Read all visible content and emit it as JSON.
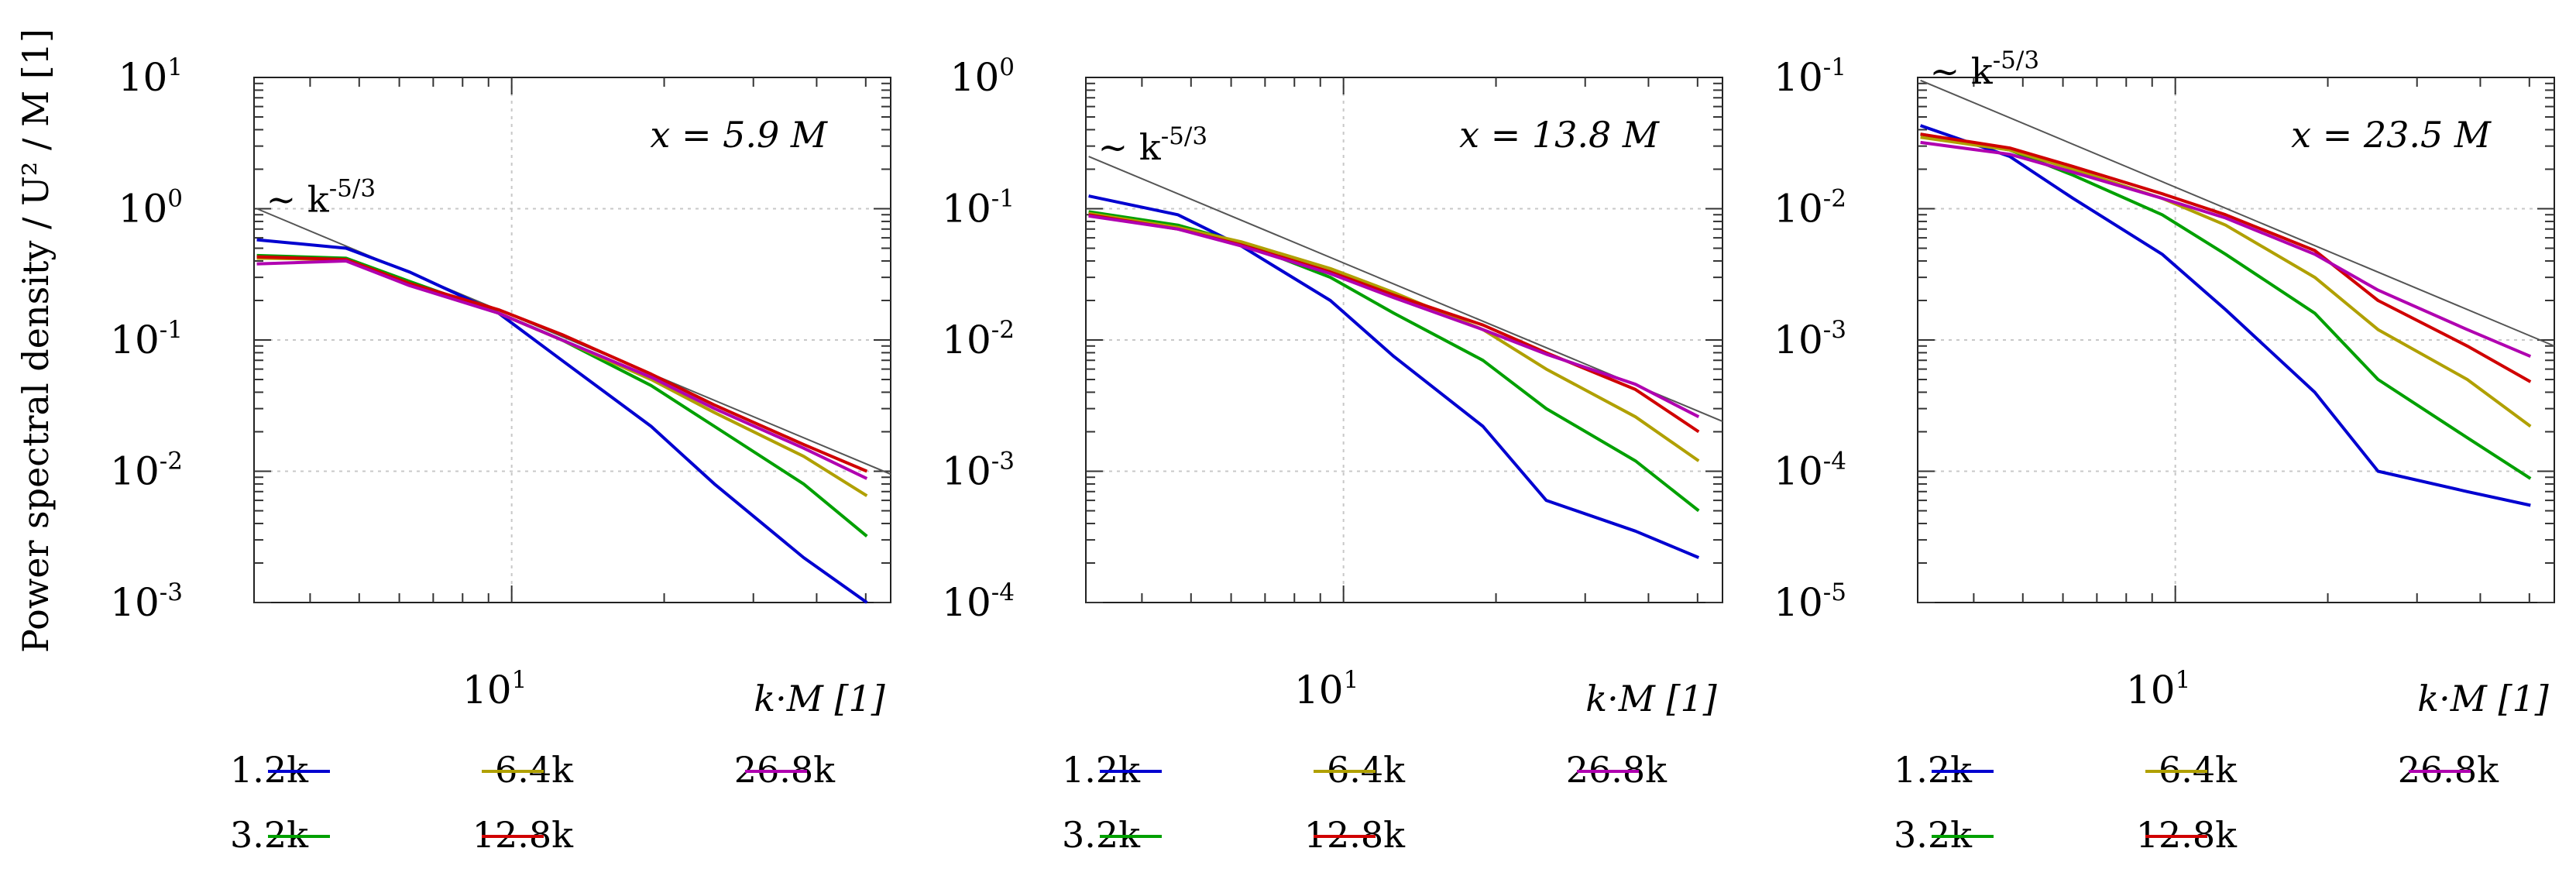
{
  "figure": {
    "ylabel": "Power spectral density / U² / M [1]",
    "xlabel": "k·M [1]"
  },
  "legend_labels": [
    "1.2k",
    "3.2k",
    "6.4k",
    "12.8k",
    "26.8k"
  ],
  "series_colors": {
    "1.2k": "#0000d0",
    "3.2k": "#00a000",
    "6.4k": "#b0a000",
    "12.8k": "#d00000",
    "26.8k": "#b000b0"
  },
  "reference_line_color": "#555555",
  "chart_data": [
    {
      "type": "line",
      "title": "x = 5.9 M",
      "annotation": "~ k^-5/3",
      "xscale": "log",
      "yscale": "log",
      "xlim": [
        3.1,
        56
      ],
      "ylim": [
        0.001,
        10
      ],
      "x_ticklabels": [
        "10^1"
      ],
      "y_ticklabels": [
        "10^-3",
        "10^-2",
        "10^-1",
        "10^0",
        "10^1"
      ],
      "x": [
        3.14,
        4.71,
        6.28,
        9.42,
        12.57,
        18.85,
        25.13,
        37.7,
        50.27
      ],
      "series": [
        {
          "name": "1.2k",
          "values": [
            0.58,
            0.5,
            0.33,
            0.16,
            0.07,
            0.022,
            0.008,
            0.0022,
            0.001
          ]
        },
        {
          "name": "3.2k",
          "values": [
            0.44,
            0.42,
            0.28,
            0.16,
            0.1,
            0.045,
            0.022,
            0.008,
            0.0032
          ]
        },
        {
          "name": "6.4k",
          "values": [
            0.42,
            0.41,
            0.27,
            0.16,
            0.1,
            0.05,
            0.028,
            0.013,
            0.0065
          ]
        },
        {
          "name": "12.8k",
          "values": [
            0.43,
            0.41,
            0.27,
            0.17,
            0.11,
            0.055,
            0.032,
            0.016,
            0.01
          ]
        },
        {
          "name": "26.8k",
          "values": [
            0.38,
            0.4,
            0.26,
            0.16,
            0.1,
            0.052,
            0.03,
            0.015,
            0.0088
          ]
        }
      ],
      "reference_line": {
        "x": [
          3.14,
          56
        ],
        "y": [
          1.0,
          0.0095
        ]
      }
    },
    {
      "type": "line",
      "title": "x = 13.8 M",
      "annotation": "~ k^-5/3",
      "xscale": "log",
      "yscale": "log",
      "xlim": [
        3.1,
        56
      ],
      "ylim": [
        0.0001,
        1
      ],
      "x_ticklabels": [
        "10^1"
      ],
      "y_ticklabels": [
        "10^-4",
        "10^-3",
        "10^-2",
        "10^-1",
        "10^0"
      ],
      "x": [
        3.14,
        4.71,
        6.28,
        9.42,
        12.57,
        18.85,
        25.13,
        37.7,
        50.27
      ],
      "series": [
        {
          "name": "1.2k",
          "values": [
            0.125,
            0.09,
            0.052,
            0.02,
            0.0075,
            0.0022,
            0.0006,
            0.00035,
            0.00022
          ]
        },
        {
          "name": "3.2k",
          "values": [
            0.095,
            0.075,
            0.055,
            0.03,
            0.016,
            0.007,
            0.003,
            0.0012,
            0.0005
          ]
        },
        {
          "name": "6.4k",
          "values": [
            0.092,
            0.072,
            0.056,
            0.035,
            0.023,
            0.012,
            0.006,
            0.0026,
            0.0012
          ]
        },
        {
          "name": "12.8k",
          "values": [
            0.09,
            0.07,
            0.053,
            0.033,
            0.022,
            0.013,
            0.008,
            0.0042,
            0.002
          ]
        },
        {
          "name": "26.8k",
          "values": [
            0.088,
            0.07,
            0.052,
            0.032,
            0.021,
            0.012,
            0.0078,
            0.0046,
            0.0026
          ]
        }
      ],
      "reference_line": {
        "x": [
          3.14,
          56
        ],
        "y": [
          0.25,
          0.0024
        ]
      }
    },
    {
      "type": "line",
      "title": "x = 23.5 M",
      "annotation": "~ k^-5/3",
      "xscale": "log",
      "yscale": "log",
      "xlim": [
        3.1,
        56
      ],
      "ylim": [
        1e-05,
        0.1
      ],
      "x_ticklabels": [
        "10^1"
      ],
      "y_ticklabels": [
        "10^-5",
        "10^-4",
        "10^-3",
        "10^-2",
        "10^-1"
      ],
      "x": [
        3.14,
        4.71,
        6.28,
        9.42,
        12.57,
        18.85,
        25.13,
        37.7,
        50.27
      ],
      "series": [
        {
          "name": "1.2k",
          "values": [
            0.043,
            0.025,
            0.012,
            0.0045,
            0.0017,
            0.0004,
            0.0001,
            7e-05,
            5.5e-05
          ]
        },
        {
          "name": "3.2k",
          "values": [
            0.037,
            0.028,
            0.018,
            0.009,
            0.0045,
            0.0016,
            0.0005,
            0.00018,
            8.8e-05
          ]
        },
        {
          "name": "6.4k",
          "values": [
            0.035,
            0.028,
            0.02,
            0.012,
            0.0075,
            0.003,
            0.0012,
            0.0005,
            0.00022
          ]
        },
        {
          "name": "12.8k",
          "values": [
            0.037,
            0.029,
            0.021,
            0.013,
            0.009,
            0.0048,
            0.002,
            0.0009,
            0.00048
          ]
        },
        {
          "name": "26.8k",
          "values": [
            0.032,
            0.026,
            0.019,
            0.012,
            0.0085,
            0.0045,
            0.0024,
            0.0012,
            0.00075
          ]
        }
      ],
      "reference_line": {
        "x": [
          3.14,
          56
        ],
        "y": [
          0.095,
          0.0009
        ]
      }
    }
  ]
}
